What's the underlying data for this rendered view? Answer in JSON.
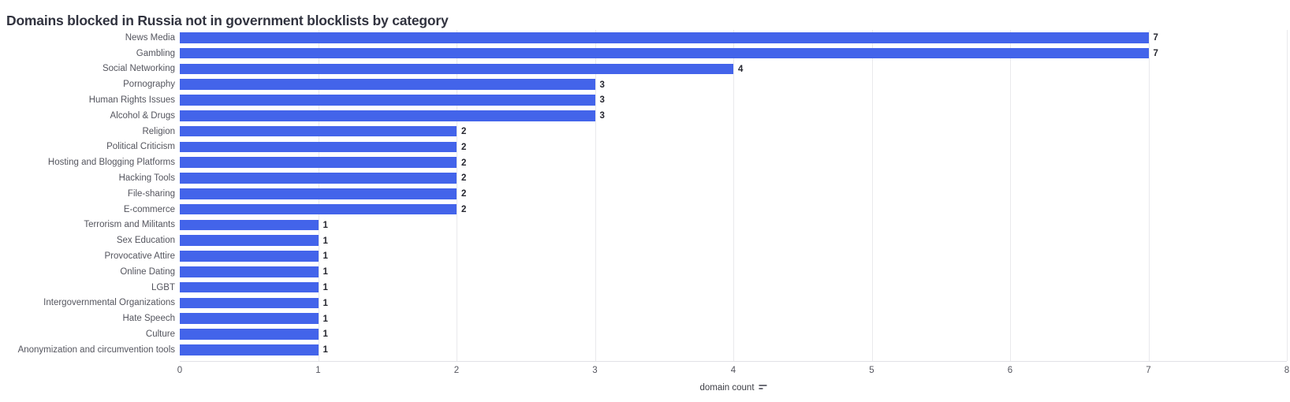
{
  "title": "Domains blocked in Russia not in government blocklists by category",
  "x_axis": {
    "label": "domain count",
    "sort_icon": "sort-descending-icon",
    "ticks": [
      0,
      1,
      2,
      3,
      4,
      5,
      6,
      7,
      8
    ]
  },
  "chart_data": {
    "type": "bar",
    "orientation": "horizontal",
    "title": "Domains blocked in Russia not in government blocklists by category",
    "categories": [
      "News Media",
      "Gambling",
      "Social Networking",
      "Pornography",
      "Human Rights Issues",
      "Alcohol & Drugs",
      "Religion",
      "Political Criticism",
      "Hosting and Blogging Platforms",
      "Hacking Tools",
      "File-sharing",
      "E-commerce",
      "Terrorism and Militants",
      "Sex Education",
      "Provocative Attire",
      "Online Dating",
      "LGBT",
      "Intergovernmental Organizations",
      "Hate Speech",
      "Culture",
      "Anonymization and circumvention tools"
    ],
    "values": [
      7,
      7,
      4,
      3,
      3,
      3,
      2,
      2,
      2,
      2,
      2,
      2,
      1,
      1,
      1,
      1,
      1,
      1,
      1,
      1,
      1
    ],
    "xlabel": "domain count",
    "ylabel": "",
    "xlim": [
      0,
      8
    ],
    "xticks": [
      0,
      1,
      2,
      3,
      4,
      5,
      6,
      7,
      8
    ],
    "grid": true,
    "value_labels_shown": true,
    "sort": "descending"
  },
  "colors": {
    "bar": "#4364EA",
    "title_text": "#31333F",
    "category_text": "#54555E",
    "value_text": "#262730",
    "tick_text": "#54555E",
    "gridline": "#E9E9EC",
    "axis_line": "#E2E2E6",
    "background": "#FFFFFF"
  }
}
